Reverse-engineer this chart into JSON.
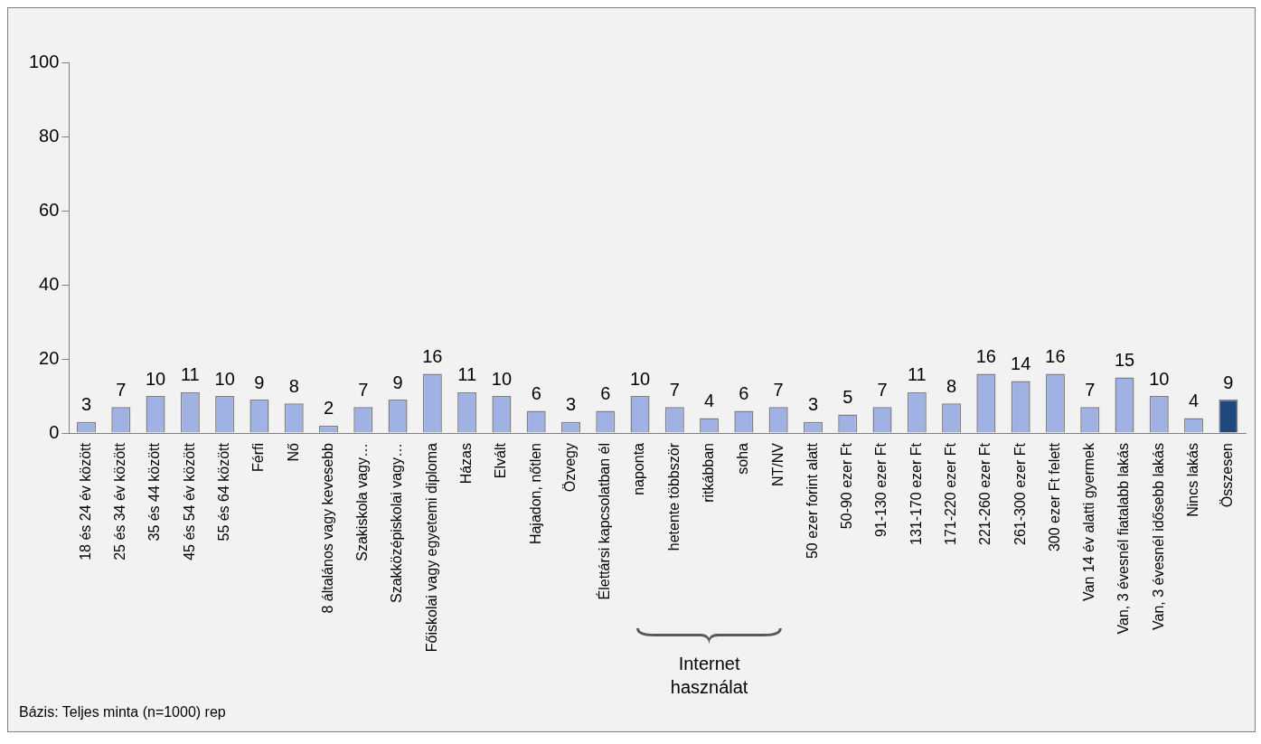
{
  "chart_data": {
    "type": "bar",
    "categories": [
      "18 és 24 év között",
      "25 és 34 év között",
      "35 és 44 között",
      "45 és 54 év között",
      "55 és 64 között",
      "Férfi",
      "Nő",
      "8 általános vagy kevesebb",
      "Szakiskola vagy…",
      "Szakközépiskolai vagy…",
      "Főiskolai vagy egyetemi diploma",
      "Házas",
      "Elvált",
      "Hajadon, nőtlen",
      "Özvegy",
      "Élettársi kapcsolatban él",
      "naponta",
      "hetente többször",
      "ritkábban",
      "soha",
      "NT/NV",
      "50 ezer forint alatt",
      "50-90 ezer Ft",
      "91-130 ezer Ft",
      "131-170 ezer Ft",
      "171-220 ezer Ft",
      "221-260 ezer Ft",
      "261-300 ezer Ft",
      "300 ezer Ft felett",
      "Van 14 év alatti gyermek",
      "Van, 3 évesnél fiatalabb lakás",
      "Van, 3 évesnél idősebb lakás",
      "Nincs lakás",
      "Összesen"
    ],
    "values": [
      3,
      7,
      10,
      11,
      10,
      9,
      8,
      2,
      7,
      9,
      16,
      11,
      10,
      6,
      3,
      6,
      10,
      7,
      4,
      6,
      7,
      3,
      5,
      7,
      11,
      8,
      16,
      14,
      16,
      7,
      15,
      10,
      4,
      9
    ],
    "colors": [
      "#a0b1e4",
      "#a0b1e4",
      "#a0b1e4",
      "#a0b1e4",
      "#a0b1e4",
      "#a0b1e4",
      "#a0b1e4",
      "#a0b1e4",
      "#a0b1e4",
      "#a0b1e4",
      "#a0b1e4",
      "#a0b1e4",
      "#a0b1e4",
      "#a0b1e4",
      "#a0b1e4",
      "#a0b1e4",
      "#a0b1e4",
      "#a0b1e4",
      "#a0b1e4",
      "#a0b1e4",
      "#a0b1e4",
      "#a0b1e4",
      "#a0b1e4",
      "#a0b1e4",
      "#a0b1e4",
      "#a0b1e4",
      "#a0b1e4",
      "#a0b1e4",
      "#a0b1e4",
      "#a0b1e4",
      "#a0b1e4",
      "#a0b1e4",
      "#a0b1e4",
      "#1f497d"
    ],
    "ylim": [
      0,
      100
    ],
    "yticks": [
      0,
      20,
      40,
      60,
      80,
      100
    ],
    "grid": false,
    "legend": false,
    "data_labels": true,
    "annotations": [
      "Internet használat",
      "Bázis: Teljes minta (n=1000) rep"
    ]
  }
}
